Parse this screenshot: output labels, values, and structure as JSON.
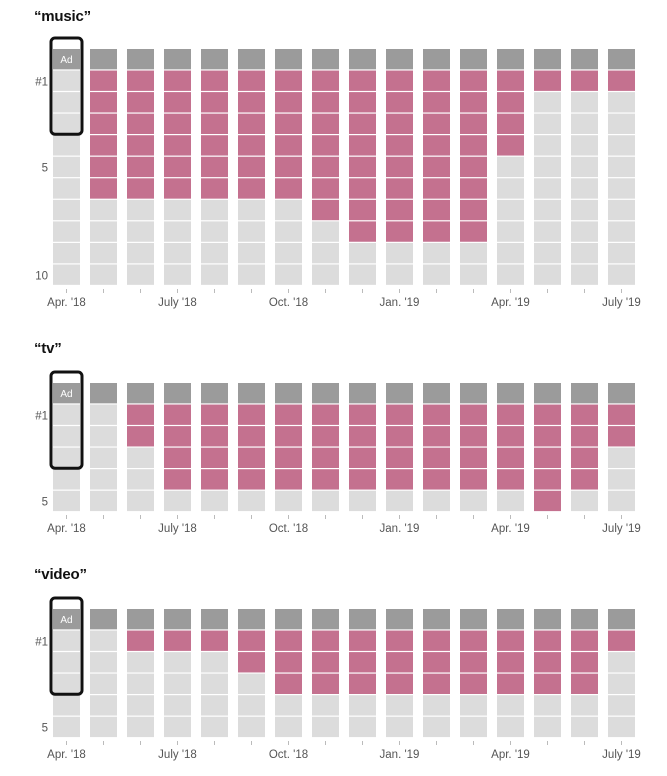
{
  "colors": {
    "ad": "#9b9b9b",
    "highlight": "#c4718f",
    "other": "#dcdcdc",
    "phone_frame": "#111111"
  },
  "phone_label": "Ad",
  "chart_data": [
    {
      "type": "bar",
      "title": "“music”",
      "months": 16,
      "x_ticks": [
        "Apr. '18",
        "July '18",
        "Oct. '18",
        "Jan. '19",
        "Apr. '19",
        "July '19"
      ],
      "y_ticks": [
        "#1",
        "5",
        "10"
      ],
      "slots": 11,
      "highlight_range": [
        null,
        [
          1,
          6
        ],
        [
          1,
          6
        ],
        [
          1,
          6
        ],
        [
          1,
          6
        ],
        [
          1,
          6
        ],
        [
          1,
          6
        ],
        [
          1,
          7
        ],
        [
          1,
          8
        ],
        [
          1,
          8
        ],
        [
          1,
          8
        ],
        [
          1,
          8
        ],
        [
          1,
          4
        ],
        [
          1,
          1
        ],
        [
          1,
          1
        ],
        [
          1,
          1
        ]
      ]
    },
    {
      "type": "bar",
      "title": "“tv”",
      "months": 16,
      "x_ticks": [
        "Apr. '18",
        "July '18",
        "Oct. '18",
        "Jan. '19",
        "Apr. '19",
        "July '19"
      ],
      "y_ticks": [
        "#1",
        "5"
      ],
      "slots": 6,
      "highlight_range": [
        null,
        null,
        [
          1,
          2
        ],
        [
          1,
          4
        ],
        [
          1,
          4
        ],
        [
          1,
          4
        ],
        [
          1,
          4
        ],
        [
          1,
          4
        ],
        [
          1,
          4
        ],
        [
          1,
          4
        ],
        [
          1,
          4
        ],
        [
          1,
          4
        ],
        [
          1,
          4
        ],
        [
          1,
          5
        ],
        [
          1,
          4
        ],
        [
          1,
          2
        ]
      ]
    },
    {
      "type": "bar",
      "title": "“video”",
      "months": 16,
      "x_ticks": [
        "Apr. '18",
        "July '18",
        "Oct. '18",
        "Jan. '19",
        "Apr. '19",
        "July '19"
      ],
      "y_ticks": [
        "#1",
        "5"
      ],
      "slots": 6,
      "highlight_range": [
        null,
        null,
        [
          1,
          1
        ],
        [
          1,
          1
        ],
        [
          1,
          1
        ],
        [
          1,
          2
        ],
        [
          1,
          3
        ],
        [
          1,
          3
        ],
        [
          1,
          3
        ],
        [
          1,
          3
        ],
        [
          1,
          3
        ],
        [
          1,
          3
        ],
        [
          1,
          3
        ],
        [
          1,
          3
        ],
        [
          1,
          3
        ],
        [
          1,
          1
        ]
      ]
    }
  ]
}
